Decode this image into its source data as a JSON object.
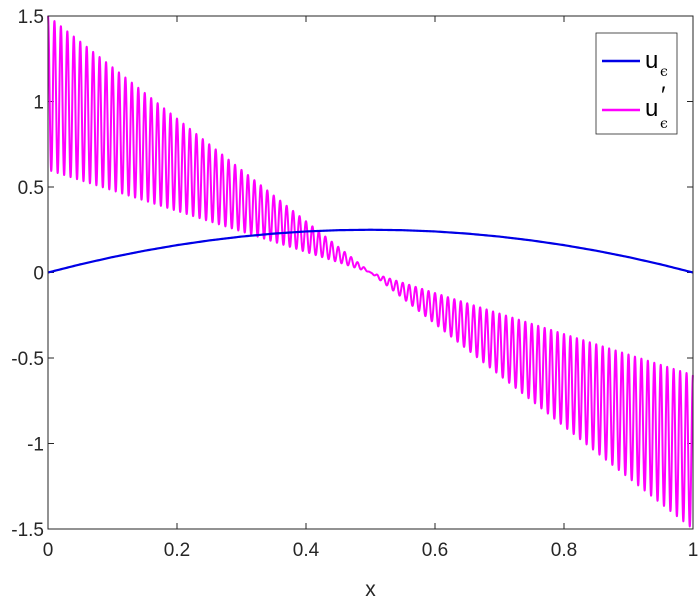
{
  "chart_data": {
    "type": "line",
    "xlabel": "x",
    "ylabel": "",
    "xlim": [
      0,
      1
    ],
    "ylim": [
      -1.5,
      1.5
    ],
    "x_ticks": [
      0,
      0.2,
      0.4,
      0.6,
      0.8,
      1
    ],
    "x_tick_labels": [
      "0",
      "0.2",
      "0.4",
      "0.6",
      "0.8",
      "1"
    ],
    "y_ticks": [
      1.5,
      1,
      0.5,
      0,
      -0.5,
      -1,
      -1.5
    ],
    "y_tick_labels": [
      "1.5",
      "1",
      "0.5",
      "0",
      "-0.5",
      "-1",
      "-1.5"
    ],
    "grid": false,
    "legend_position": "top-right",
    "series": [
      {
        "name": "u",
        "subscript": "ϵ",
        "prime": "",
        "color": "#0000e6",
        "x": [
          0,
          0.05,
          0.1,
          0.15,
          0.2,
          0.25,
          0.3,
          0.35,
          0.4,
          0.45,
          0.5,
          0.55,
          0.6,
          0.65,
          0.7,
          0.75,
          0.8,
          0.85,
          0.9,
          0.95,
          1
        ],
        "y": [
          0,
          0.0475,
          0.09,
          0.1275,
          0.16,
          0.1875,
          0.21,
          0.2275,
          0.24,
          0.2475,
          0.25,
          0.2475,
          0.24,
          0.2275,
          0.21,
          0.1875,
          0.16,
          0.1275,
          0.09,
          0.0475,
          0
        ]
      },
      {
        "name": "u",
        "subscript": "ϵ",
        "prime": "′",
        "color": "#ff00ff",
        "mean_x": [
          0,
          0.5,
          1
        ],
        "mean_y": [
          1.05,
          0,
          -1.05
        ],
        "envelope_x": [
          0,
          0.5,
          1
        ],
        "envelope_amplitude": [
          0.45,
          0,
          0.45
        ],
        "oscillation_cycles": 100
      }
    ]
  }
}
